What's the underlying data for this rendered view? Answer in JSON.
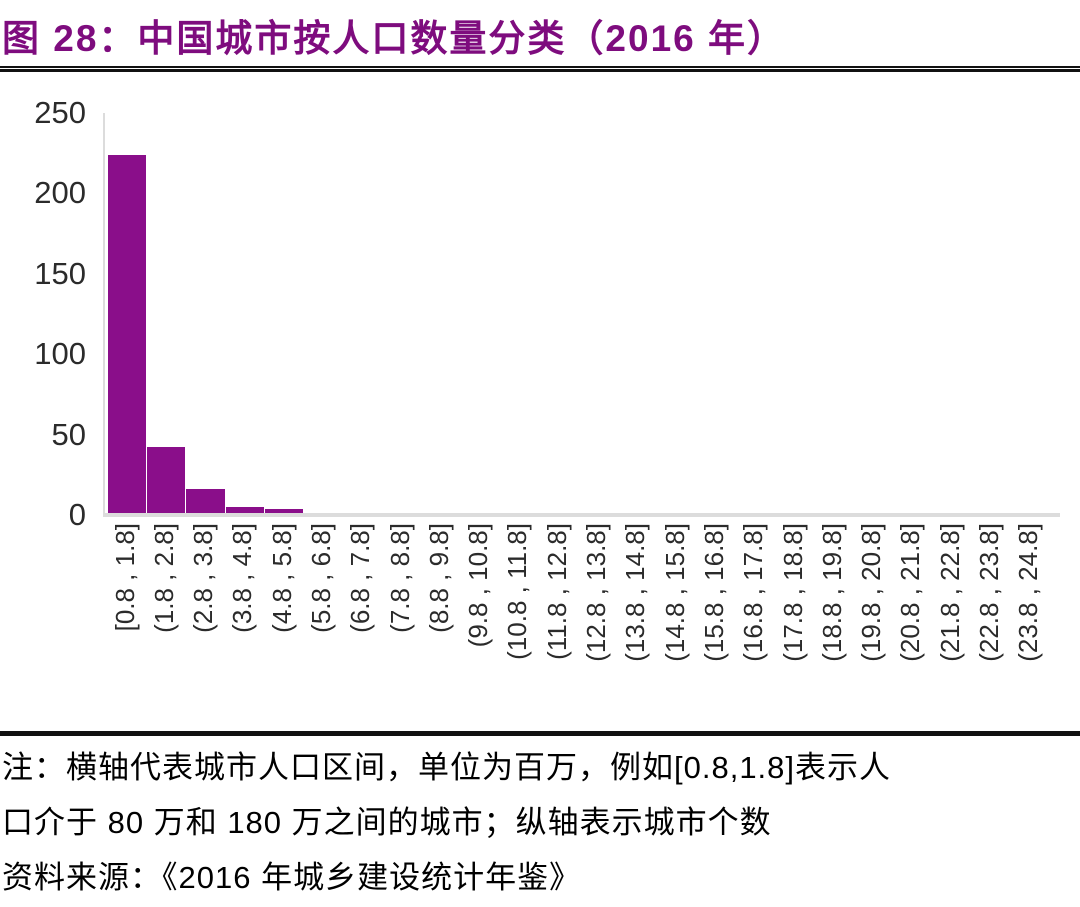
{
  "header": {
    "title": "图 28：中国城市按人口数量分类（2016 年）"
  },
  "colors": {
    "bar": "#8A0E8A",
    "title": "#7E0C7E",
    "axis_line": "#DCDCDC",
    "tick_text": "#2B2B2B",
    "rule": "#111111"
  },
  "chart_data": {
    "type": "bar",
    "title": "中国城市按人口数量分类（2016 年）",
    "categories": [
      "[0.8 , 1.8]",
      "(1.8 , 2.8]",
      "(2.8 , 3.8]",
      "(3.8 , 4.8]",
      "(4.8 , 5.8]",
      "(5.8 , 6.8]",
      "(6.8 , 7.8]",
      "(7.8 , 8.8]",
      "(8.8 , 9.8]",
      "(9.8 , 10.8]",
      "(10.8 , 11.8]",
      "(11.8 , 12.8]",
      "(12.8 , 13.8]",
      "(13.8 , 14.8]",
      "(14.8 , 15.8]",
      "(15.8 , 16.8]",
      "(16.8 , 17.8]",
      "(17.8 , 18.8]",
      "(18.8 , 19.8]",
      "(19.8 , 20.8]",
      "(20.8 , 21.8]",
      "(21.8 , 22.8]",
      "(22.8 , 23.8]",
      "(23.8 , 24.8]"
    ],
    "values": [
      224,
      42,
      16,
      5,
      4,
      1,
      0,
      1,
      0,
      0,
      0,
      0,
      0,
      0,
      0,
      0,
      0,
      0,
      0,
      0,
      0,
      0,
      0,
      1
    ],
    "xlabel": "",
    "ylabel": "",
    "ylim": [
      0,
      250
    ],
    "yticks": [
      0,
      50,
      100,
      150,
      200,
      250
    ],
    "grid": false,
    "legend_position": "none",
    "bar_color": "#8A0E8A"
  },
  "notes": {
    "lines": [
      "注：横轴代表城市人口区间，单位为百万，例如[0.8,1.8]表示人",
      "口介于 80 万和 180 万之间的城市；纵轴表示城市个数",
      "资料来源：《2016 年城乡建设统计年鉴》"
    ]
  }
}
